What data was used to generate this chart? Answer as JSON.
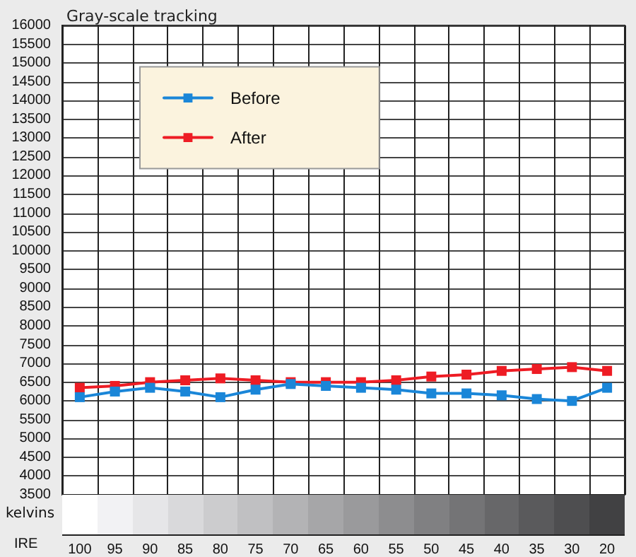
{
  "chart_data": {
    "type": "line",
    "title": "Gray-scale tracking",
    "xlabel": "IRE",
    "annotations": [
      "kelvins"
    ],
    "categories": [
      "100",
      "95",
      "90",
      "85",
      "80",
      "75",
      "70",
      "65",
      "60",
      "55",
      "50",
      "45",
      "40",
      "35",
      "30",
      "20"
    ],
    "series": [
      {
        "name": "Before",
        "color": "#1a86d8",
        "values": [
          6100,
          6250,
          6350,
          6250,
          6100,
          6300,
          6450,
          6400,
          6350,
          6300,
          6200,
          6200,
          6150,
          6050,
          6000,
          6350
        ]
      },
      {
        "name": "After",
        "color": "#ee1c24",
        "values": [
          6350,
          6400,
          6500,
          6550,
          6600,
          6550,
          6500,
          6500,
          6500,
          6550,
          6650,
          6700,
          6800,
          6850,
          6900,
          6800
        ]
      }
    ],
    "ylim": [
      3500,
      16000
    ],
    "yticks": [
      3500,
      4000,
      4500,
      5000,
      5500,
      6000,
      6500,
      7000,
      7500,
      8000,
      8500,
      9000,
      9500,
      10000,
      10500,
      11000,
      11500,
      12000,
      12500,
      13000,
      13500,
      14000,
      14500,
      15000,
      15500,
      16000
    ],
    "grid": true,
    "legend": "top left",
    "marker": "square",
    "line_style": "solid"
  }
}
